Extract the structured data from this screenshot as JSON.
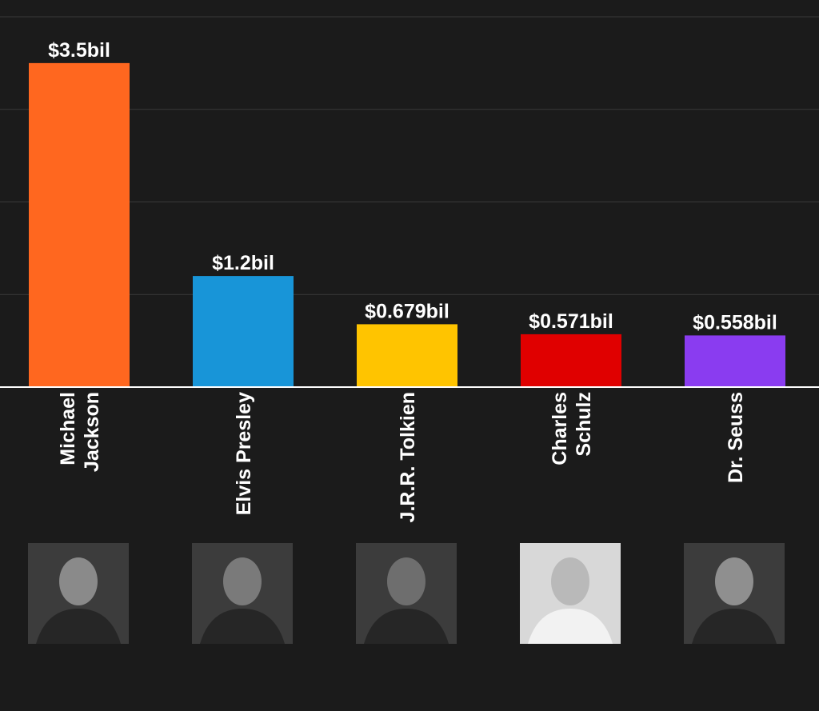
{
  "chart_data": {
    "type": "bar",
    "title": "",
    "xlabel": "",
    "ylabel": "",
    "ylim": [
      0,
      4
    ],
    "grid": true,
    "categories": [
      [
        "Michael",
        "Jackson"
      ],
      [
        "Elvis Presley"
      ],
      [
        "J.R.R. Tolkien"
      ],
      [
        "Charles",
        "Schulz"
      ],
      [
        "Dr. Seuss"
      ]
    ],
    "values": [
      3.5,
      1.2,
      0.679,
      0.571,
      0.558
    ],
    "value_labels": [
      "$3.5bil",
      "$1.2bil",
      "$0.679bil",
      "$0.571bil",
      "$0.558bil"
    ],
    "colors": [
      "#ff671f",
      "#1895d8",
      "#ffc400",
      "#e00000",
      "#8a3cf0"
    ],
    "portraits": [
      {
        "name": "michael-jackson-portrait",
        "tone": "#8a8a8a"
      },
      {
        "name": "elvis-presley-portrait",
        "tone": "#7a7a7a"
      },
      {
        "name": "jrr-tolkien-portrait",
        "tone": "#6e6e6e"
      },
      {
        "name": "charles-schulz-portrait",
        "tone": "#b9b9b9"
      },
      {
        "name": "dr-seuss-portrait",
        "tone": "#8f8f8f"
      }
    ]
  }
}
